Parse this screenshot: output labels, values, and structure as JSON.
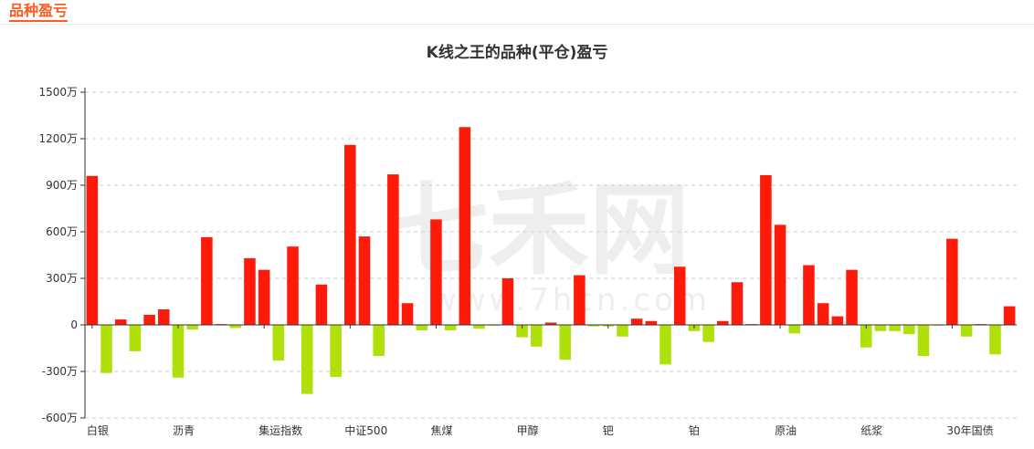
{
  "section": {
    "title": "品种盈亏"
  },
  "watermark": {
    "cn": "七禾网",
    "url": "www.7hcn.com"
  },
  "colors": {
    "profit": "#ff1a0a",
    "loss": "#b0e00a",
    "accent": "#ff5a1f",
    "grid": "#cccccc",
    "axis": "#333333"
  },
  "chart_data": {
    "type": "bar",
    "title": "K线之王的品种(平仓)盈亏",
    "unit": "万",
    "ylim": [
      -600,
      1500
    ],
    "yticks": [
      "1500万",
      "1200万",
      "900万",
      "600万",
      "300万",
      "0",
      "-300万",
      "-600万"
    ],
    "ytick_values": [
      1500,
      1200,
      900,
      600,
      300,
      0,
      -300,
      -600
    ],
    "x_labels": [
      "白银",
      "沥青",
      "集运指数",
      "中证500",
      "焦煤",
      "甲醇",
      "钯",
      "铂",
      "原油",
      "纸浆",
      "30年国债"
    ],
    "x_label_positions": [
      0,
      6,
      12,
      18,
      24,
      30,
      36,
      42,
      48,
      54,
      60
    ],
    "grid": true,
    "values": [
      960,
      -310,
      35,
      -170,
      65,
      100,
      -340,
      -30,
      565,
      5,
      -20,
      430,
      355,
      -230,
      505,
      -445,
      260,
      -335,
      1160,
      570,
      -200,
      970,
      140,
      -35,
      680,
      -35,
      1275,
      -25,
      -5,
      300,
      -80,
      -140,
      15,
      -225,
      320,
      -10,
      -10,
      -75,
      40,
      25,
      -255,
      375,
      -40,
      -110,
      25,
      275,
      5,
      965,
      645,
      -55,
      385,
      140,
      55,
      355,
      -145,
      -40,
      -40,
      -60,
      -200,
      -5,
      555,
      -75,
      5,
      -190,
      120
    ]
  }
}
